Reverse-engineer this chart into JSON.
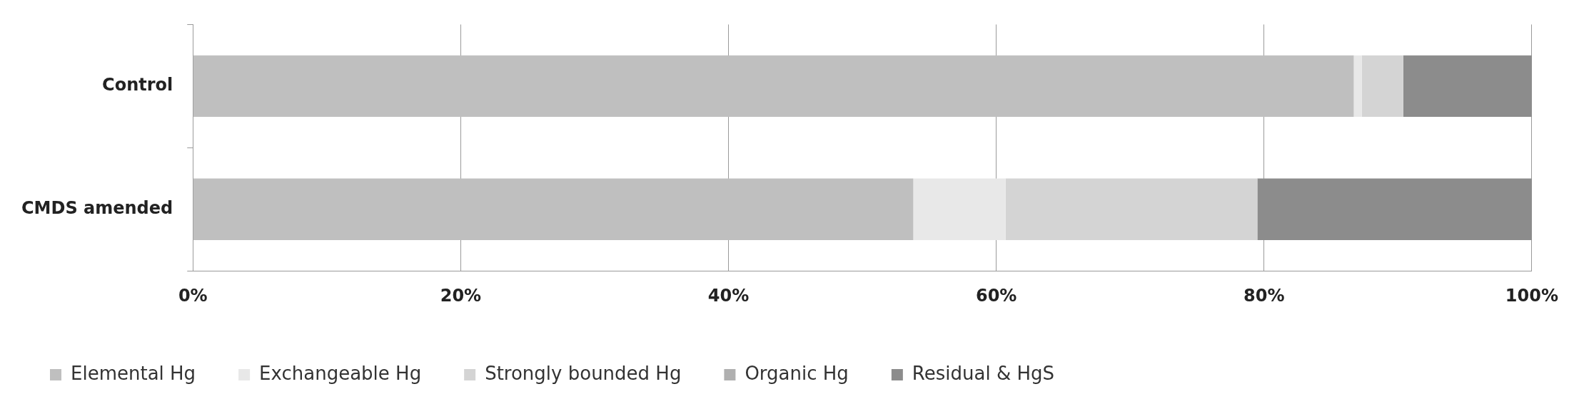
{
  "chart_data": {
    "type": "bar",
    "orientation": "horizontal",
    "stacked": true,
    "categories": [
      "Control",
      "CMDS amended"
    ],
    "series": [
      {
        "name": "Elemental Hg",
        "color": "#bfbfbf",
        "values": [
          86.7,
          53.8
        ]
      },
      {
        "name": "Exchangeable Hg",
        "color": "#e8e8e8",
        "values": [
          0.6,
          6.9
        ]
      },
      {
        "name": "Strongly bounded Hg",
        "color": "#d4d4d4",
        "values": [
          3.1,
          18.8
        ]
      },
      {
        "name": "Organic Hg",
        "color": "#b0b0b0",
        "values": [
          0,
          0
        ]
      },
      {
        "name": "Residual & HgS",
        "color": "#8c8c8c",
        "values": [
          9.6,
          20.5
        ]
      }
    ],
    "xlim": [
      0,
      100
    ],
    "xticks": [
      {
        "value": 0,
        "label": "0%"
      },
      {
        "value": 20,
        "label": "20%"
      },
      {
        "value": 40,
        "label": "40%"
      },
      {
        "value": 60,
        "label": "60%"
      },
      {
        "value": 80,
        "label": "80%"
      },
      {
        "value": 100,
        "label": "100%"
      }
    ],
    "grid": "x",
    "legend": "bottom"
  }
}
